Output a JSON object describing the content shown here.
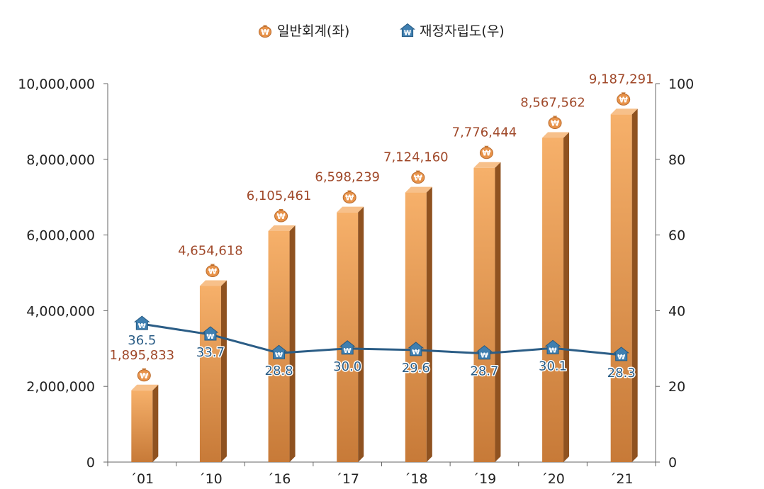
{
  "chart_data": {
    "type": "bar",
    "categories": [
      "´01",
      "´10",
      "´16",
      "´17",
      "´18",
      "´19",
      "´20",
      "´21"
    ],
    "series": [
      {
        "name": "일반회계(좌)",
        "type": "bar",
        "axis": "left",
        "values": [
          1895833,
          4654618,
          6105461,
          6598239,
          7124160,
          7776444,
          8567562,
          9187291
        ],
        "labels": [
          "1,895,833",
          "4,654,618",
          "6,105,461",
          "6,598,239",
          "7,124,160",
          "7,776,444",
          "8,567,562",
          "9,187,291"
        ],
        "color": "#e8934a",
        "icon": "money-bag-icon"
      },
      {
        "name": "재정자립도(우)",
        "type": "line",
        "axis": "right",
        "values": [
          36.5,
          33.7,
          28.8,
          30.0,
          29.6,
          28.7,
          30.1,
          28.3
        ],
        "labels": [
          "36.5",
          "33.7",
          "28.8",
          "30.0",
          "29.6",
          "28.7",
          "30.1",
          "28.3"
        ],
        "color": "#2b5d86",
        "icon": "house-won-icon"
      }
    ],
    "y_left": {
      "range": [
        0,
        10000000
      ],
      "ticks": [
        0,
        2000000,
        4000000,
        6000000,
        8000000,
        10000000
      ],
      "tick_labels": [
        "0",
        "2,000,000",
        "4,000,000",
        "6,000,000",
        "8,000,000",
        "10,000,000"
      ]
    },
    "y_right": {
      "range": [
        0,
        100
      ],
      "ticks": [
        0,
        20,
        40,
        60,
        80,
        100
      ],
      "tick_labels": [
        "0",
        "20",
        "40",
        "60",
        "80",
        "100"
      ]
    },
    "grid": false,
    "legend": "top-center",
    "icon_glyph": "₩"
  }
}
